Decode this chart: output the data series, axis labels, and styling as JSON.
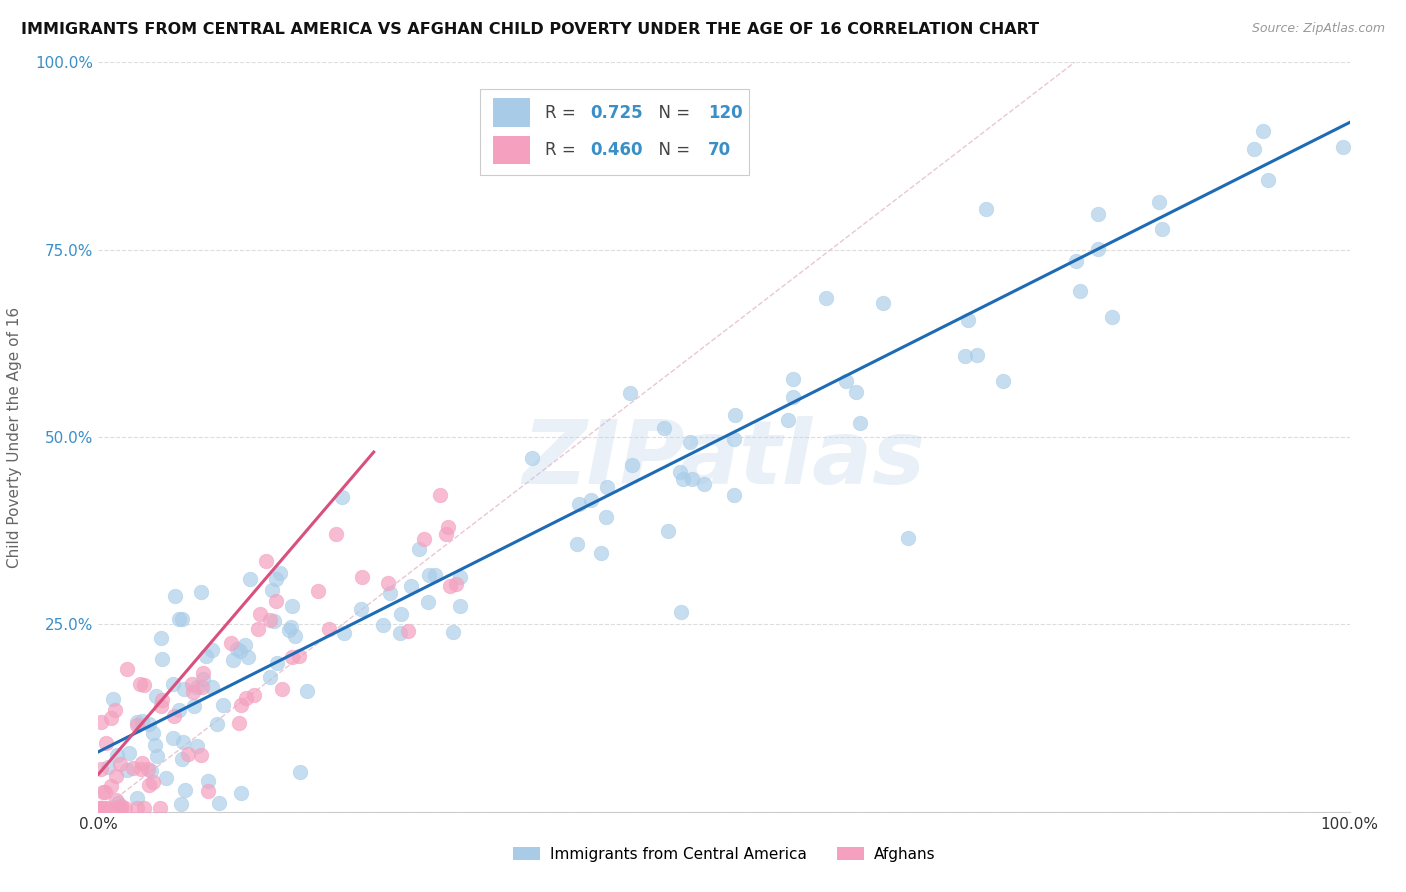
{
  "title": "IMMIGRANTS FROM CENTRAL AMERICA VS AFGHAN CHILD POVERTY UNDER THE AGE OF 16 CORRELATION CHART",
  "source_text": "Source: ZipAtlas.com",
  "ylabel": "Child Poverty Under the Age of 16",
  "watermark": "ZIPatlas",
  "legend1_R": "0.725",
  "legend1_N": "120",
  "legend2_R": "0.460",
  "legend2_N": "70",
  "legend1_label": "Immigrants from Central America",
  "legend2_label": "Afghans",
  "blue_color": "#a8cce8",
  "pink_color": "#f4a0be",
  "blue_line_color": "#1e6bb5",
  "pink_line_color": "#d94f7e",
  "R_N_color": "#3a8fc7",
  "xlim": [
    0,
    1
  ],
  "ylim": [
    0,
    1
  ],
  "xticks": [
    0,
    0.25,
    0.5,
    0.75,
    1.0
  ],
  "yticks": [
    0,
    0.25,
    0.5,
    0.75,
    1.0
  ],
  "xtick_labels": [
    "0.0%",
    "",
    "",
    "",
    "100.0%"
  ],
  "ytick_labels": [
    "",
    "25.0%",
    "50.0%",
    "75.0%",
    "100.0%"
  ],
  "blue_line": [
    0.0,
    1.0,
    0.08,
    0.92
  ],
  "pink_line": [
    0.0,
    0.22,
    0.05,
    0.48
  ],
  "diag_line": [
    0.0,
    0.78,
    0.0,
    1.0
  ]
}
